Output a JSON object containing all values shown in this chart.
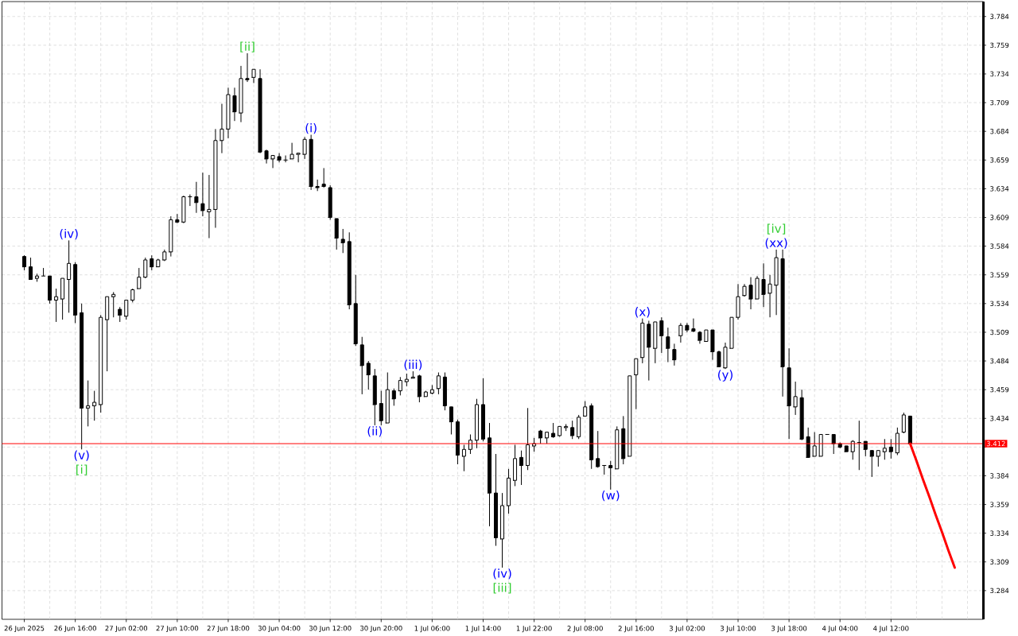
{
  "chart_data": {
    "type": "candlestick",
    "categories": [
      "26 Jun 2025",
      null,
      null,
      null,
      null,
      null,
      null,
      null,
      "26 Jun 16:00",
      null,
      null,
      null,
      null,
      null,
      null,
      null,
      "27 Jun 02:00",
      null,
      null,
      null,
      null,
      null,
      null,
      null,
      "27 Jun 10:00",
      null,
      null,
      null,
      null,
      null,
      null,
      null,
      "27 Jun 18:00",
      null,
      null,
      null,
      null,
      null,
      null,
      null,
      "30 Jun 04:00",
      null,
      null,
      null,
      null,
      null,
      null,
      null,
      "30 Jun 12:00",
      null,
      null,
      null,
      null,
      null,
      null,
      null,
      "30 Jun 20:00",
      null,
      null,
      null,
      null,
      null,
      null,
      null,
      "1 Jul 06:00",
      null,
      null,
      null,
      null,
      null,
      null,
      null,
      "1 Jul 14:00",
      null,
      null,
      null,
      null,
      null,
      null,
      null,
      "1 Jul 22:00",
      null,
      null,
      null,
      null,
      null,
      null,
      null,
      "2 Jul 08:00",
      null,
      null,
      null,
      null,
      null,
      null,
      null,
      "2 Jul 16:00",
      null,
      null,
      null,
      null,
      null,
      null,
      null,
      "3 Jul 02:00",
      null,
      null,
      null,
      null,
      null,
      null,
      null,
      "3 Jul 10:00",
      null,
      null,
      null,
      null,
      null,
      null,
      null,
      "3 Jul 18:00",
      null,
      null,
      null,
      null,
      null,
      null,
      null,
      "4 Jul 04:00",
      null,
      null,
      null,
      null,
      null,
      null,
      null,
      "4 Jul 12:00",
      null,
      null,
      null,
      null,
      null,
      null,
      null,
      null,
      null,
      null,
      null,
      null,
      null,
      null
    ],
    "ohlc": [
      [
        3.575,
        3.576,
        3.563,
        3.566
      ],
      [
        3.566,
        3.574,
        3.555,
        3.555
      ],
      [
        3.556,
        3.56,
        3.553,
        3.558
      ],
      [
        3.558,
        3.565,
        3.558,
        3.558
      ],
      [
        3.558,
        3.558,
        3.534,
        3.537
      ],
      [
        3.537,
        3.547,
        3.518,
        3.54
      ],
      [
        3.538,
        3.556,
        3.52,
        3.556
      ],
      [
        3.555,
        3.589,
        3.526,
        3.569
      ],
      [
        3.568,
        3.57,
        3.517,
        3.524
      ],
      [
        3.526,
        3.534,
        3.407,
        3.443
      ],
      [
        3.443,
        3.467,
        3.427,
        3.445
      ],
      [
        3.445,
        3.458,
        3.432,
        3.448
      ],
      [
        3.446,
        3.524,
        3.439,
        3.522
      ],
      [
        3.52,
        3.54,
        3.475,
        3.54
      ],
      [
        3.54,
        3.544,
        3.522,
        3.542
      ],
      [
        3.529,
        3.531,
        3.518,
        3.524
      ],
      [
        3.523,
        3.537,
        3.52,
        3.537
      ],
      [
        3.537,
        3.547,
        3.535,
        3.546
      ],
      [
        3.547,
        3.565,
        3.547,
        3.557
      ],
      [
        3.557,
        3.574,
        3.556,
        3.572
      ],
      [
        3.573,
        3.576,
        3.563,
        3.566
      ],
      [
        3.566,
        3.573,
        3.566,
        3.572
      ],
      [
        3.572,
        3.581,
        3.571,
        3.579
      ],
      [
        3.579,
        3.61,
        3.575,
        3.607
      ],
      [
        3.607,
        3.612,
        3.604,
        3.605
      ],
      [
        3.605,
        3.628,
        3.604,
        3.627
      ],
      [
        3.627,
        3.629,
        3.619,
        3.627
      ],
      [
        3.627,
        3.64,
        3.613,
        3.622
      ],
      [
        3.621,
        3.648,
        3.61,
        3.615
      ],
      [
        3.614,
        3.646,
        3.591,
        3.616
      ],
      [
        3.616,
        3.686,
        3.6,
        3.676
      ],
      [
        3.676,
        3.708,
        3.665,
        3.686
      ],
      [
        3.686,
        3.722,
        3.678,
        3.716
      ],
      [
        3.715,
        3.722,
        3.693,
        3.701
      ],
      [
        3.7,
        3.741,
        3.692,
        3.73
      ],
      [
        3.73,
        3.752,
        3.727,
        3.729
      ],
      [
        3.731,
        3.738,
        3.726,
        3.738
      ],
      [
        3.73,
        3.738,
        3.665,
        3.666
      ],
      [
        3.667,
        3.668,
        3.656,
        3.66
      ],
      [
        3.66,
        3.663,
        3.652,
        3.663
      ],
      [
        3.662,
        3.665,
        3.657,
        3.659
      ],
      [
        3.659,
        3.663,
        3.657,
        3.659
      ],
      [
        3.66,
        3.674,
        3.66,
        3.664
      ],
      [
        3.664,
        3.665,
        3.657,
        3.665
      ],
      [
        3.664,
        3.679,
        3.66,
        3.677
      ],
      [
        3.677,
        3.681,
        3.633,
        3.636
      ],
      [
        3.636,
        3.642,
        3.632,
        3.635
      ],
      [
        3.638,
        3.652,
        3.635,
        3.636
      ],
      [
        3.635,
        3.637,
        3.607,
        3.609
      ],
      [
        3.608,
        3.608,
        3.581,
        3.591
      ],
      [
        3.59,
        3.599,
        3.578,
        3.587
      ],
      [
        3.588,
        3.596,
        3.529,
        3.533
      ],
      [
        3.534,
        3.559,
        3.497,
        3.499
      ],
      [
        3.498,
        3.505,
        3.455,
        3.48
      ],
      [
        3.482,
        3.484,
        3.459,
        3.472
      ],
      [
        3.471,
        3.477,
        3.428,
        3.446
      ],
      [
        3.447,
        3.458,
        3.428,
        3.432
      ],
      [
        3.43,
        3.474,
        3.43,
        3.459
      ],
      [
        3.458,
        3.46,
        3.445,
        3.451
      ],
      [
        3.458,
        3.47,
        3.454,
        3.467
      ],
      [
        3.466,
        3.473,
        3.462,
        3.468
      ],
      [
        3.469,
        3.475,
        3.469,
        3.47
      ],
      [
        3.471,
        3.472,
        3.448,
        3.453
      ],
      [
        3.453,
        3.458,
        3.453,
        3.457
      ],
      [
        3.456,
        3.463,
        3.455,
        3.459
      ],
      [
        3.46,
        3.474,
        3.455,
        3.471
      ],
      [
        3.47,
        3.474,
        3.441,
        3.445
      ],
      [
        3.444,
        3.444,
        3.42,
        3.431
      ],
      [
        3.431,
        3.433,
        3.394,
        3.402
      ],
      [
        3.401,
        3.411,
        3.388,
        3.407
      ],
      [
        3.407,
        3.42,
        3.403,
        3.415
      ],
      [
        3.415,
        3.451,
        3.408,
        3.446
      ],
      [
        3.446,
        3.469,
        3.414,
        3.416
      ],
      [
        3.417,
        3.43,
        3.34,
        3.369
      ],
      [
        3.369,
        3.403,
        3.323,
        3.33
      ],
      [
        3.329,
        3.369,
        3.304,
        3.358
      ],
      [
        3.358,
        3.39,
        3.351,
        3.382
      ],
      [
        3.38,
        3.411,
        3.375,
        3.399
      ],
      [
        3.4,
        3.406,
        3.376,
        3.393
      ],
      [
        3.393,
        3.443,
        3.389,
        3.411
      ],
      [
        3.41,
        3.417,
        3.405,
        3.412
      ],
      [
        3.423,
        3.424,
        3.412,
        3.417
      ],
      [
        3.417,
        3.422,
        3.412,
        3.422
      ],
      [
        3.421,
        3.43,
        3.417,
        3.418
      ],
      [
        3.419,
        3.427,
        3.418,
        3.427
      ],
      [
        3.426,
        3.429,
        3.423,
        3.427
      ],
      [
        3.426,
        3.432,
        3.416,
        3.419
      ],
      [
        3.418,
        3.437,
        3.416,
        3.435
      ],
      [
        3.436,
        3.449,
        3.436,
        3.444
      ],
      [
        3.445,
        3.447,
        3.39,
        3.398
      ],
      [
        3.399,
        3.423,
        3.391,
        3.392
      ],
      [
        3.393,
        3.393,
        3.385,
        3.393
      ],
      [
        3.393,
        3.397,
        3.372,
        3.391
      ],
      [
        3.39,
        3.427,
        3.39,
        3.424
      ],
      [
        3.425,
        3.436,
        3.394,
        3.399
      ],
      [
        3.401,
        3.471,
        3.401,
        3.471
      ],
      [
        3.472,
        3.486,
        3.442,
        3.486
      ],
      [
        3.487,
        3.521,
        3.482,
        3.517
      ],
      [
        3.516,
        3.519,
        3.467,
        3.496
      ],
      [
        3.495,
        3.518,
        3.482,
        3.518
      ],
      [
        3.519,
        3.522,
        3.491,
        3.506
      ],
      [
        3.505,
        3.513,
        3.483,
        3.495
      ],
      [
        3.494,
        3.499,
        3.48,
        3.485
      ],
      [
        3.506,
        3.517,
        3.5,
        3.515
      ],
      [
        3.515,
        3.517,
        3.509,
        3.511
      ],
      [
        3.512,
        3.521,
        3.509,
        3.51
      ],
      [
        3.509,
        3.51,
        3.499,
        3.502
      ],
      [
        3.501,
        3.511,
        3.501,
        3.511
      ],
      [
        3.511,
        3.511,
        3.485,
        3.492
      ],
      [
        3.492,
        3.493,
        3.479,
        3.479
      ],
      [
        3.478,
        3.5,
        3.477,
        3.496
      ],
      [
        3.495,
        3.522,
        3.495,
        3.522
      ],
      [
        3.522,
        3.551,
        3.52,
        3.54
      ],
      [
        3.541,
        3.551,
        3.54,
        3.549
      ],
      [
        3.55,
        3.557,
        3.529,
        3.538
      ],
      [
        3.538,
        3.558,
        3.538,
        3.556
      ],
      [
        3.555,
        3.569,
        3.531,
        3.542
      ],
      [
        3.543,
        3.559,
        3.522,
        3.551
      ],
      [
        3.55,
        3.581,
        3.524,
        3.574
      ],
      [
        3.573,
        3.581,
        3.453,
        3.479
      ],
      [
        3.478,
        3.495,
        3.416,
        3.445
      ],
      [
        3.444,
        3.466,
        3.437,
        3.453
      ],
      [
        3.452,
        3.459,
        3.415,
        3.416
      ],
      [
        3.418,
        3.426,
        3.4,
        3.4
      ],
      [
        3.401,
        3.422,
        3.401,
        3.41
      ],
      [
        3.401,
        3.42,
        3.401,
        3.42
      ],
      [
        3.42,
        3.42,
        3.42,
        3.42
      ],
      [
        3.42,
        3.42,
        3.403,
        3.412
      ],
      [
        3.412,
        3.413,
        3.408,
        3.409
      ],
      [
        3.41,
        3.41,
        3.405,
        3.405
      ],
      [
        3.405,
        3.415,
        3.398,
        3.414
      ],
      [
        3.413,
        3.432,
        3.389,
        3.413
      ],
      [
        3.414,
        3.414,
        3.401,
        3.407
      ],
      [
        3.406,
        3.406,
        3.383,
        3.401
      ],
      [
        3.401,
        3.406,
        3.392,
        3.406
      ],
      [
        3.405,
        3.416,
        3.398,
        3.408
      ],
      [
        3.409,
        3.416,
        3.399,
        3.405
      ],
      [
        3.404,
        3.426,
        3.402,
        3.421
      ],
      [
        3.422,
        3.439,
        3.421,
        3.437
      ],
      [
        3.436,
        3.436,
        3.412,
        3.412
      ],
      null,
      null,
      null,
      null,
      null,
      null,
      null,
      null,
      null,
      null,
      null
    ],
    "series": [
      {
        "type": "line",
        "color": "#ff0000",
        "values": [
          null,
          null,
          null,
          null,
          null,
          null,
          null,
          null,
          null,
          null,
          null,
          null,
          null,
          null,
          null,
          null,
          null,
          null,
          null,
          null,
          null,
          null,
          null,
          null,
          null,
          null,
          null,
          null,
          null,
          null,
          null,
          null,
          null,
          null,
          null,
          null,
          null,
          null,
          null,
          null,
          null,
          null,
          null,
          null,
          null,
          null,
          null,
          null,
          null,
          null,
          null,
          null,
          null,
          null,
          null,
          null,
          null,
          null,
          null,
          null,
          null,
          null,
          null,
          null,
          null,
          null,
          null,
          null,
          null,
          null,
          null,
          null,
          null,
          null,
          null,
          null,
          null,
          null,
          null,
          null,
          null,
          null,
          null,
          null,
          null,
          null,
          null,
          null,
          null,
          null,
          null,
          null,
          null,
          null,
          null,
          null,
          null,
          null,
          null,
          null,
          null,
          null,
          null,
          null,
          null,
          null,
          null,
          null,
          null,
          null,
          null,
          null,
          null,
          null,
          null,
          null,
          null,
          null,
          null,
          null,
          null,
          null,
          null,
          null,
          null,
          null,
          null,
          null,
          null,
          null,
          null,
          null,
          null,
          null,
          null,
          null,
          null,
          null,
          null,
          3.412,
          3.397,
          3.381,
          3.366,
          3.35,
          3.335,
          3.319,
          3.304,
          null,
          null,
          null,
          null
        ]
      }
    ],
    "ylim": [
      3.259,
      3.797
    ],
    "yticks": [
      3.284,
      3.309,
      3.334,
      3.359,
      3.384,
      {
        "value": 3.409,
        "label": null
      },
      3.434,
      3.459,
      3.484,
      3.509,
      3.534,
      3.559,
      3.584,
      3.609,
      3.634,
      3.659,
      3.684,
      3.709,
      3.734,
      3.759,
      3.784
    ],
    "grid": true,
    "ref_lines": [
      {
        "axis": "y",
        "value": 3.412,
        "label": "3.412",
        "color": "#ff0000"
      }
    ],
    "annotations": [
      "(iv)",
      "(v)",
      "[i]",
      "[ii]",
      "(i)",
      "(ii)",
      "(iii)",
      "(iv)",
      "[iii]",
      "(w)",
      "(x)",
      "(y)",
      "(xx)",
      "[iv]"
    ]
  }
}
